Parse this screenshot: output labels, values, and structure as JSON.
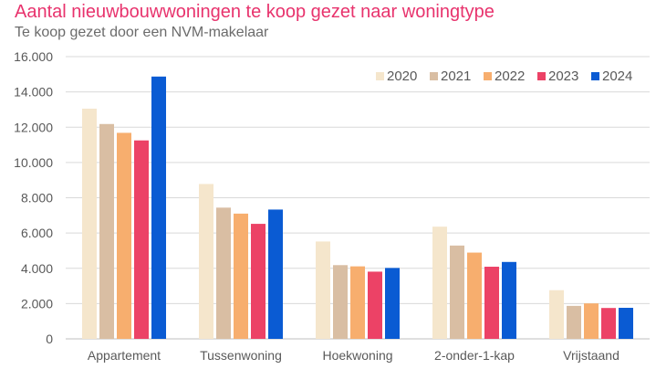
{
  "header": {
    "title": "Aantal nieuwbouwwoningen te koop gezet naar woningtype",
    "subtitle": "Te koop gezet door een NVM-makelaar"
  },
  "chart_data": {
    "type": "bar",
    "title": "Aantal nieuwbouwwoningen te koop gezet naar woningtype",
    "subtitle": "Te koop gezet door een NVM-makelaar",
    "xlabel": "",
    "ylabel": "",
    "categories": [
      "Appartement",
      "Tussenwoning",
      "Hoekwoning",
      "2-onder-1-kap",
      "Vrijstaand"
    ],
    "series": [
      {
        "name": "2020",
        "color": "#f5e6cc",
        "values": [
          13050,
          8780,
          5520,
          6360,
          2760
        ]
      },
      {
        "name": "2021",
        "color": "#d9bea3",
        "values": [
          12180,
          7440,
          4180,
          5290,
          1870
        ]
      },
      {
        "name": "2022",
        "color": "#f7ae6e",
        "values": [
          11680,
          7100,
          4110,
          4890,
          2010
        ]
      },
      {
        "name": "2023",
        "color": "#ec4266",
        "values": [
          11250,
          6520,
          3810,
          4090,
          1750
        ]
      },
      {
        "name": "2024",
        "color": "#0a5bd3",
        "values": [
          14870,
          7330,
          4020,
          4360,
          1760
        ]
      }
    ],
    "ylim": [
      0,
      16000
    ],
    "yticks": [
      0,
      2000,
      4000,
      6000,
      8000,
      10000,
      12000,
      14000,
      16000
    ],
    "ytick_labels": [
      "0",
      "2.000",
      "4.000",
      "6.000",
      "8.000",
      "10.000",
      "12.000",
      "14.000",
      "16.000"
    ],
    "grid": true,
    "legend_position": "top-right"
  }
}
